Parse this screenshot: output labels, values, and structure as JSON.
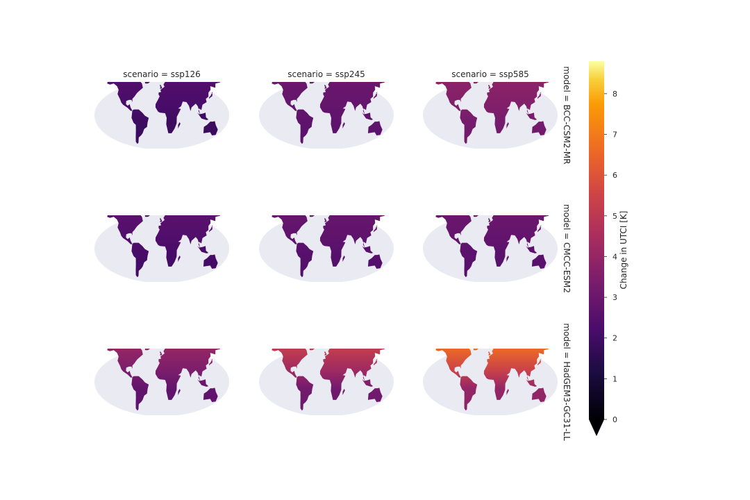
{
  "chart_data": {
    "type": "heatmap",
    "title": "",
    "columns": [
      {
        "label": "scenario = ssp126"
      },
      {
        "label": "scenario = ssp245"
      },
      {
        "label": "scenario = ssp585"
      }
    ],
    "rows": [
      {
        "label": "model = BCC-CSM2-MR"
      },
      {
        "label": "model = CMCC-ESM2"
      },
      {
        "label": "model = HadGEM3-GC31-LL"
      }
    ],
    "panels": [
      [
        {
          "mean": 1.9,
          "high_lat": 2.4
        },
        {
          "mean": 2.7,
          "high_lat": 3.0
        },
        {
          "mean": 3.3,
          "high_lat": 3.8
        }
      ],
      [
        {
          "mean": 2.1,
          "high_lat": 2.6
        },
        {
          "mean": 2.5,
          "high_lat": 2.9
        },
        {
          "mean": 2.6,
          "high_lat": 3.0
        }
      ],
      [
        {
          "mean": 2.8,
          "high_lat": 4.0
        },
        {
          "mean": 3.2,
          "high_lat": 5.2
        },
        {
          "mean": 4.0,
          "high_lat": 6.6
        }
      ]
    ],
    "colorbar": {
      "label": "Change in UTCI [K]",
      "colormap": "inferno",
      "vmin": 0,
      "vmax": 8.8,
      "ticks": [
        "0",
        "1",
        "2",
        "3",
        "4",
        "5",
        "6",
        "7",
        "8"
      ],
      "extend": "min"
    },
    "background_color": "#eaeaf2"
  }
}
